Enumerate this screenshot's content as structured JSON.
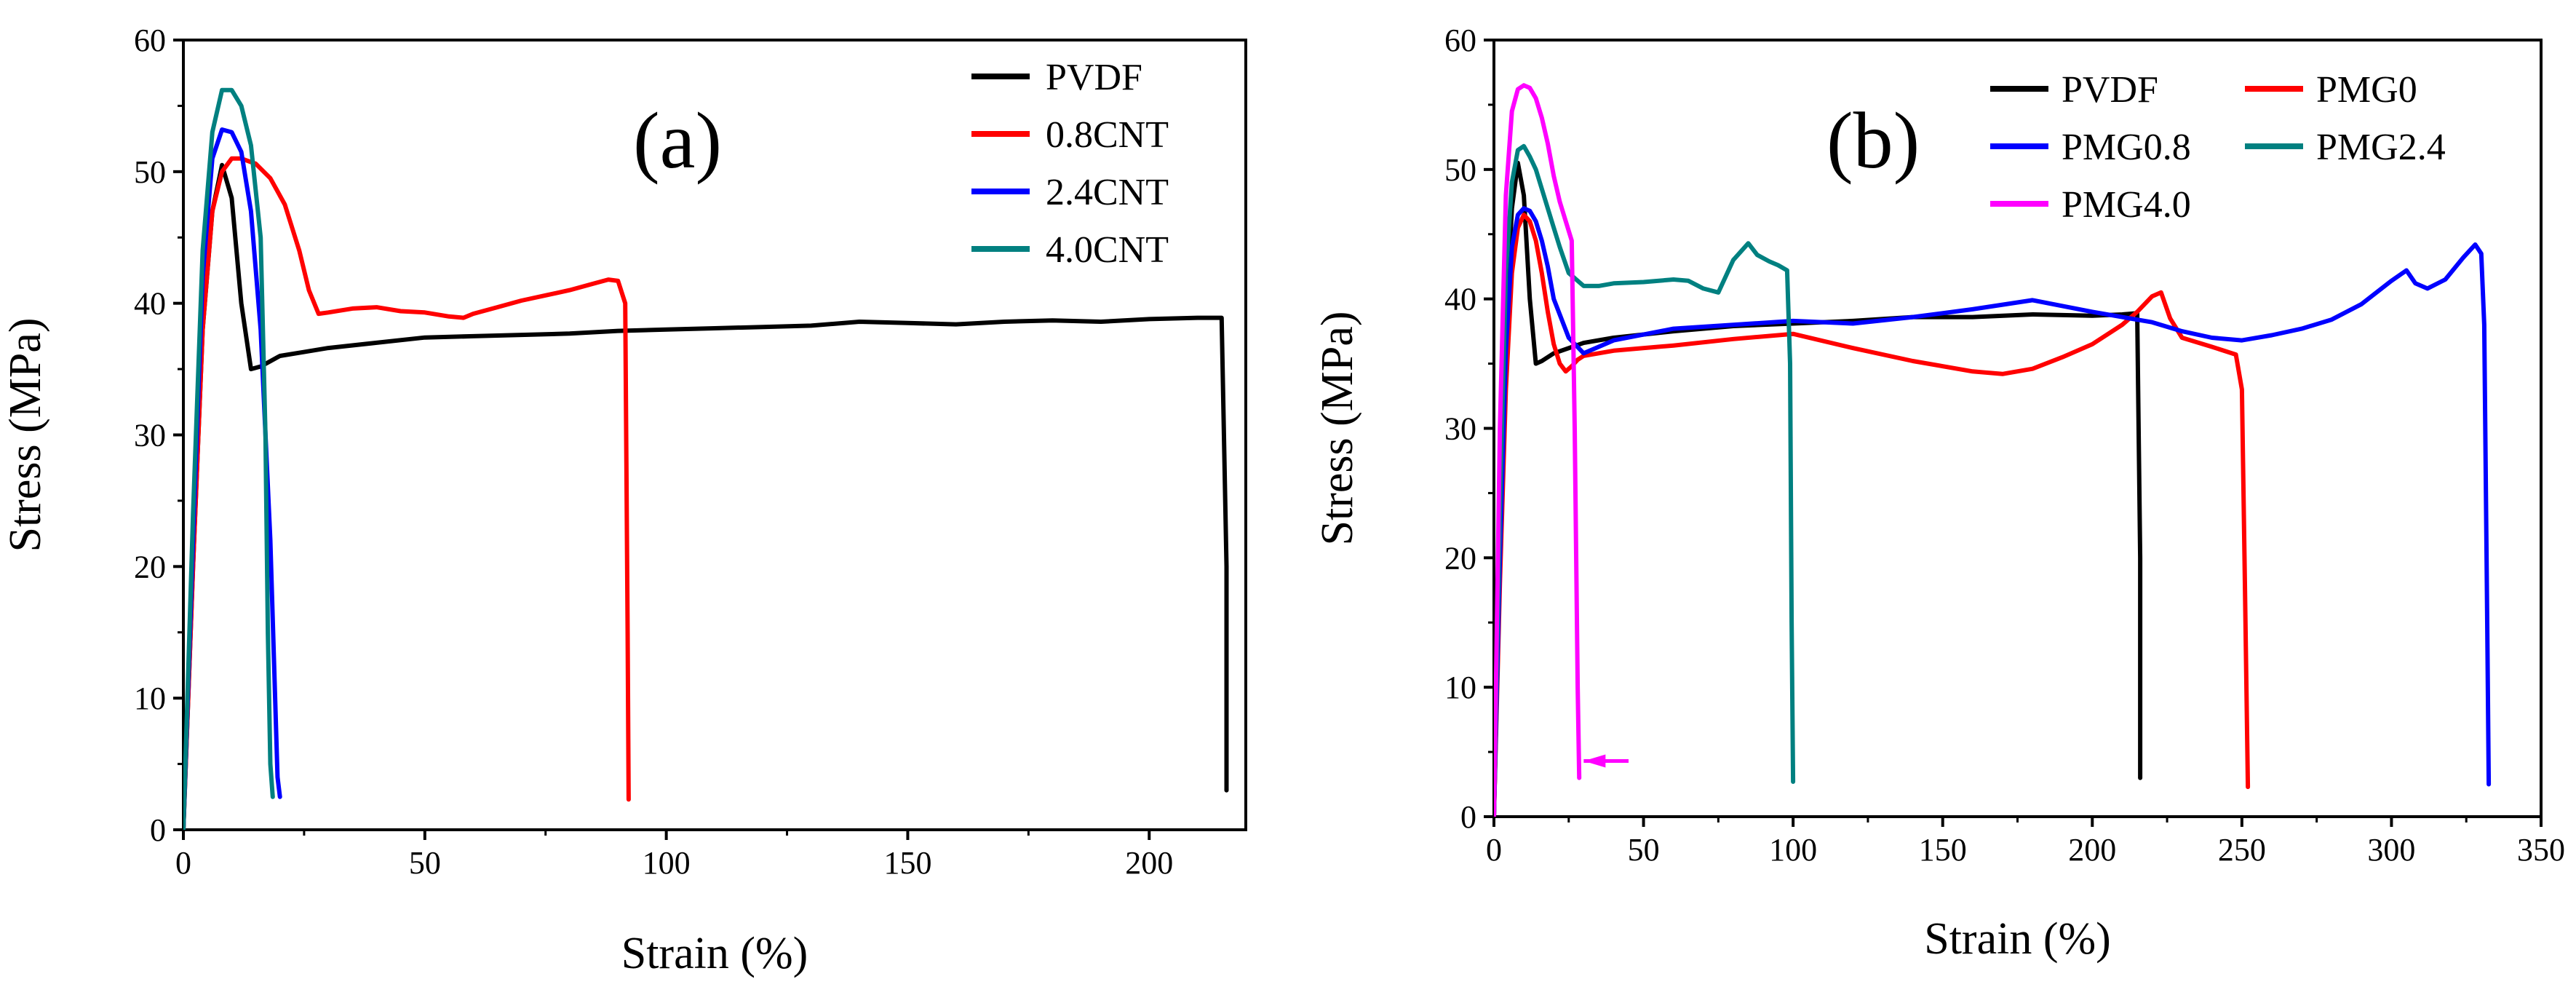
{
  "chart_data": [
    {
      "type": "line",
      "panel_label": "(a)",
      "xlabel": "Strain (%)",
      "ylabel": "Stress (MPa)",
      "xlim": [
        0,
        220
      ],
      "ylim": [
        0,
        60
      ],
      "xticks": [
        0,
        50,
        100,
        150,
        200
      ],
      "yticks": [
        0,
        10,
        20,
        30,
        40,
        50,
        60
      ],
      "legend_position": "top-right",
      "series": [
        {
          "name": "PVDF",
          "color": "#000000",
          "x": [
            0,
            2,
            4,
            6,
            8,
            10,
            12,
            14,
            16,
            18,
            20,
            25,
            30,
            40,
            50,
            60,
            70,
            80,
            90,
            100,
            110,
            120,
            130,
            140,
            150,
            160,
            170,
            180,
            190,
            200,
            210,
            215,
            216,
            216
          ],
          "y": [
            0,
            20,
            38,
            47,
            50.5,
            48,
            40,
            35,
            35.2,
            35.6,
            36,
            36.3,
            36.6,
            37,
            37.4,
            37.5,
            37.6,
            37.7,
            37.9,
            38,
            38.1,
            38.2,
            38.3,
            38.6,
            38.5,
            38.4,
            38.6,
            38.7,
            38.6,
            38.8,
            38.9,
            38.9,
            20,
            3
          ]
        },
        {
          "name": "0.8CNT",
          "color": "#ff0000",
          "x": [
            0,
            2,
            4,
            6,
            8,
            10,
            12,
            15,
            18,
            21,
            24,
            26,
            28,
            30,
            35,
            40,
            45,
            50,
            55,
            58,
            60,
            65,
            70,
            75,
            80,
            85,
            88,
            90,
            91.5,
            92,
            92.2
          ],
          "y": [
            0,
            20,
            38,
            47,
            50,
            51,
            51,
            50.6,
            49.5,
            47.5,
            44,
            41,
            39.2,
            39.3,
            39.6,
            39.7,
            39.4,
            39.3,
            39,
            38.9,
            39.2,
            39.7,
            40.2,
            40.6,
            41,
            41.5,
            41.8,
            41.7,
            40,
            15,
            2.3
          ]
        },
        {
          "name": "2.4CNT",
          "color": "#0000ff",
          "x": [
            0,
            2,
            4,
            6,
            8,
            10,
            12,
            14,
            16,
            18,
            19,
            19.5,
            20
          ],
          "y": [
            0,
            22,
            42,
            51,
            53.2,
            53,
            51.5,
            47,
            38,
            22,
            10,
            4,
            2.5
          ]
        },
        {
          "name": "4.0CNT",
          "color": "#008080",
          "x": [
            0,
            2,
            4,
            6,
            8,
            10,
            12,
            14,
            16,
            17,
            17.5,
            18,
            18.5
          ],
          "y": [
            0,
            24,
            44,
            53,
            56.2,
            56.2,
            55,
            52,
            45,
            30,
            15,
            5,
            2.5
          ]
        }
      ]
    },
    {
      "type": "line",
      "panel_label": "(b)",
      "xlabel": "Strain (%)",
      "ylabel": "Stress (MPa)",
      "xlim": [
        0,
        350
      ],
      "ylim": [
        0,
        60
      ],
      "xticks": [
        0,
        50,
        100,
        150,
        200,
        250,
        300,
        350
      ],
      "yticks": [
        0,
        10,
        20,
        30,
        40,
        50,
        60
      ],
      "legend_position": "top",
      "series": [
        {
          "name": "PVDF",
          "color": "#000000",
          "x": [
            0,
            2,
            4,
            6,
            8,
            10,
            12,
            14,
            16,
            20,
            30,
            40,
            60,
            80,
            100,
            120,
            140,
            160,
            180,
            200,
            210,
            215,
            216,
            216
          ],
          "y": [
            0,
            20,
            38,
            47,
            50.5,
            48,
            40,
            35,
            35.2,
            35.8,
            36.6,
            37,
            37.5,
            37.9,
            38.1,
            38.3,
            38.6,
            38.6,
            38.8,
            38.7,
            38.8,
            38.9,
            20,
            3
          ]
        },
        {
          "name": "PMG0",
          "color": "#ff0000",
          "x": [
            0,
            2,
            4,
            6,
            8,
            10,
            12,
            14,
            16,
            18,
            20,
            22,
            24,
            26,
            28,
            30,
            40,
            60,
            80,
            100,
            120,
            140,
            160,
            170,
            180,
            190,
            200,
            210,
            215,
            220,
            223,
            226,
            230,
            240,
            248,
            250,
            251,
            252
          ],
          "y": [
            0,
            18,
            33,
            42,
            45.5,
            46.5,
            46,
            44.5,
            42,
            39,
            36.5,
            35,
            34.4,
            34.8,
            35.3,
            35.6,
            36,
            36.4,
            36.9,
            37.3,
            36.2,
            35.2,
            34.4,
            34.2,
            34.6,
            35.5,
            36.5,
            38,
            39,
            40.2,
            40.5,
            38.5,
            37,
            36.3,
            35.7,
            33,
            18,
            2.3
          ]
        },
        {
          "name": "PMG0.8",
          "color": "#0000ff",
          "x": [
            0,
            2,
            4,
            6,
            8,
            10,
            12,
            14,
            16,
            18,
            20,
            25,
            30,
            40,
            60,
            80,
            100,
            120,
            140,
            160,
            180,
            200,
            210,
            220,
            230,
            240,
            250,
            260,
            270,
            280,
            290,
            300,
            305,
            308,
            312,
            318,
            324,
            328,
            330,
            331,
            332,
            332.5
          ],
          "y": [
            0,
            20,
            36,
            44,
            46.5,
            47,
            46.8,
            46,
            44.5,
            42.5,
            40,
            37,
            35.8,
            36.8,
            37.7,
            38,
            38.3,
            38.1,
            38.6,
            39.2,
            39.9,
            39,
            38.6,
            38.2,
            37.5,
            37,
            36.8,
            37.2,
            37.7,
            38.4,
            39.6,
            41.4,
            42.2,
            41.2,
            40.8,
            41.5,
            43.2,
            44.2,
            43.5,
            38,
            15,
            2.5
          ]
        },
        {
          "name": "PMG2.4",
          "color": "#008080",
          "x": [
            0,
            2,
            4,
            6,
            8,
            10,
            12,
            14,
            16,
            18,
            20,
            22,
            25,
            30,
            35,
            40,
            50,
            60,
            65,
            70,
            75,
            80,
            85,
            88,
            92,
            95,
            98,
            99,
            99.5,
            100
          ],
          "y": [
            0,
            24,
            42,
            49,
            51.5,
            51.8,
            51,
            50,
            48.5,
            47,
            45.5,
            44,
            42,
            41,
            41,
            41.2,
            41.3,
            41.5,
            41.4,
            40.8,
            40.5,
            43,
            44.3,
            43.4,
            42.9,
            42.6,
            42.2,
            35,
            15,
            2.7
          ]
        },
        {
          "name": "PMG4.0",
          "color": "#ff00ff",
          "x": [
            0,
            2,
            4,
            6,
            8,
            10,
            12,
            14,
            16,
            18,
            20,
            22,
            24,
            26,
            27,
            28,
            28.5
          ],
          "y": [
            0,
            30,
            48,
            54.5,
            56.2,
            56.5,
            56.3,
            55.5,
            54,
            52,
            49.5,
            47.5,
            46,
            44.5,
            30,
            10,
            3
          ]
        }
      ],
      "annotation": {
        "type": "arrow",
        "color": "#ff00ff",
        "x_from": 30,
        "x_to": 45,
        "y": 4.3
      }
    }
  ]
}
